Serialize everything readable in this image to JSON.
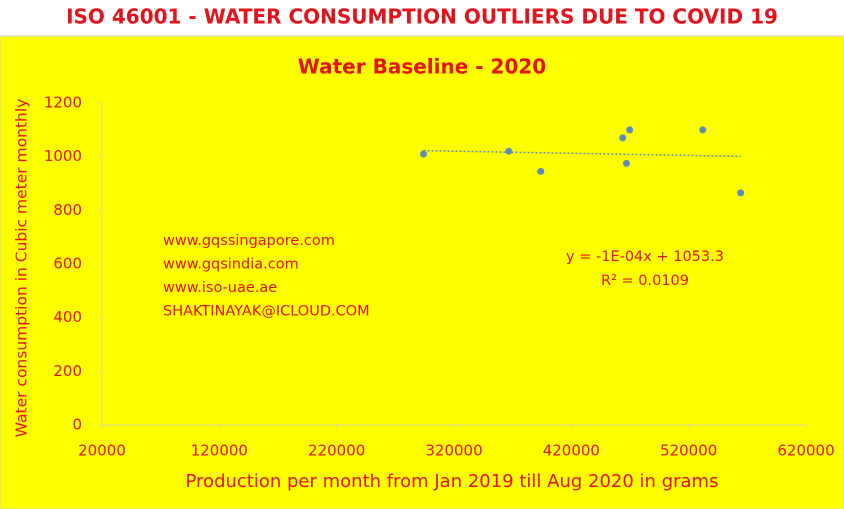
{
  "header": {
    "title": "ISO 46001 - WATER CONSUMPTION OUTLIERS DUE TO COVID 19"
  },
  "chart_data": {
    "type": "scatter",
    "title": "Water Baseline - 2020",
    "x_label": "Production per month from Jan 2019 till Aug 2020 in grams",
    "y_label": "Water consumption in Cubic meter monthly",
    "x": [
      294000,
      366700,
      394000,
      463800,
      469750,
      467000,
      532000,
      564300
    ],
    "series": [
      {
        "name": "Water consumption",
        "color": "#5b8db8",
        "values": [
          1010,
          1020,
          945,
          1070,
          1100,
          975,
          1100,
          865
        ]
      }
    ],
    "xlim": [
      20000,
      620000
    ],
    "xticks": [
      20000,
      120000,
      220000,
      320000,
      420000,
      520000,
      620000
    ],
    "ylim": [
      0,
      1200
    ],
    "yticks": [
      0,
      200,
      400,
      600,
      800,
      1000,
      1200
    ],
    "trendline": "linear",
    "annotations": [
      "www.gqssingapore.com",
      "www.gqsindia.com",
      "www.iso-uae.ae",
      "SHAKTINAYAK@ICLOUD.COM"
    ],
    "equation": [
      "y = -1E-04x + 1053.3",
      "R² = 0.0109"
    ]
  }
}
